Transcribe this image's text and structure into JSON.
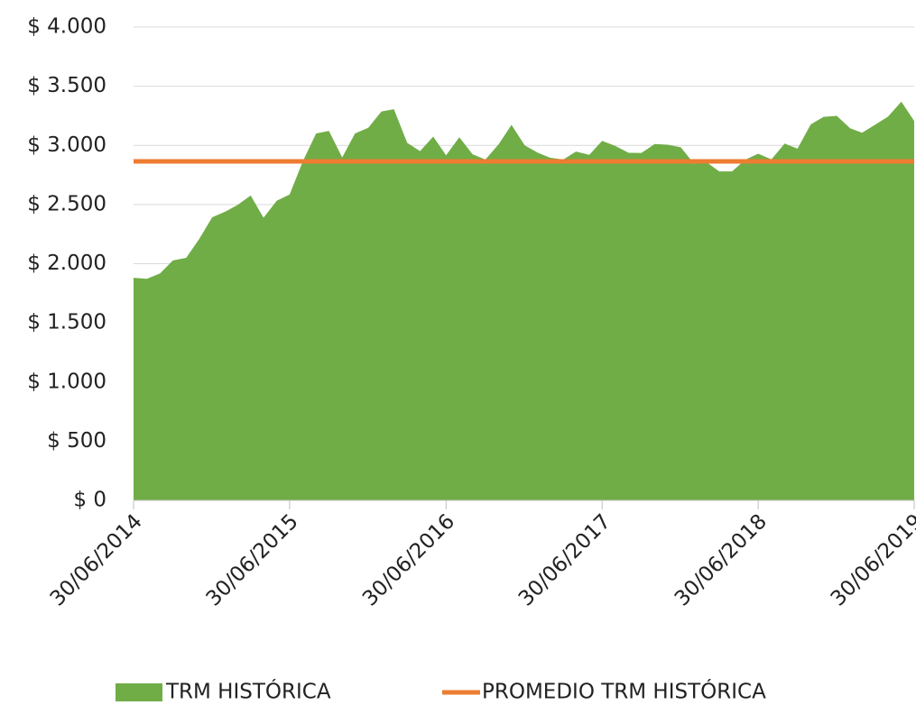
{
  "chart_data": {
    "type": "area",
    "x": [
      "30/06/2014",
      "31/07/2014",
      "31/08/2014",
      "30/09/2014",
      "31/10/2014",
      "30/11/2014",
      "31/12/2014",
      "31/01/2015",
      "28/02/2015",
      "31/03/2015",
      "30/04/2015",
      "31/05/2015",
      "30/06/2015",
      "31/07/2015",
      "31/08/2015",
      "30/09/2015",
      "31/10/2015",
      "30/11/2015",
      "31/12/2015",
      "31/01/2016",
      "29/02/2016",
      "31/03/2016",
      "30/04/2016",
      "31/05/2016",
      "30/06/2016",
      "31/07/2016",
      "31/08/2016",
      "30/09/2016",
      "31/10/2016",
      "30/11/2016",
      "31/12/2016",
      "31/01/2017",
      "28/02/2017",
      "31/03/2017",
      "30/04/2017",
      "31/05/2017",
      "30/06/2017",
      "31/07/2017",
      "31/08/2017",
      "30/09/2017",
      "31/10/2017",
      "30/11/2017",
      "31/12/2017",
      "31/01/2018",
      "28/02/2018",
      "31/03/2018",
      "30/04/2018",
      "31/05/2018",
      "30/06/2018",
      "31/07/2018",
      "31/08/2018",
      "30/09/2018",
      "31/10/2018",
      "30/11/2018",
      "31/12/2018",
      "31/01/2019",
      "28/02/2019",
      "31/03/2019",
      "30/04/2019",
      "31/05/2019",
      "30/06/2019"
    ],
    "series": [
      {
        "name": "TRM HISTÓRICA",
        "color": "#70ad47",
        "values": [
          1881,
          1872,
          1918,
          2028,
          2050,
          2206,
          2392,
          2441,
          2496,
          2576,
          2389,
          2532,
          2585,
          2866,
          3101,
          3122,
          2898,
          3101,
          3149,
          3287,
          3306,
          3022,
          2951,
          3074,
          2916,
          3069,
          2925,
          2880,
          3010,
          3173,
          3000,
          2937,
          2896,
          2880,
          2948,
          2920,
          3038,
          2995,
          2937,
          2936,
          3011,
          3006,
          2984,
          2844,
          2861,
          2780,
          2780,
          2879,
          2930,
          2882,
          3015,
          2972,
          3177,
          3241,
          3250,
          3145,
          3107,
          3175,
          3244,
          3370,
          3206
        ]
      },
      {
        "name": "PROMEDIO TRM HISTÓRICA",
        "color": "#ed7d31",
        "type": "hline",
        "value": 2865
      }
    ],
    "xlim": [
      "30/06/2014",
      "30/06/2019"
    ],
    "xticks": [
      "30/06/2014",
      "30/06/2015",
      "30/06/2016",
      "30/06/2017",
      "30/06/2018",
      "30/06/2019"
    ],
    "ylim": [
      0,
      4000
    ],
    "yticks": [
      {
        "value": 0,
        "label": "$ 0"
      },
      {
        "value": 500,
        "label": "$ 500"
      },
      {
        "value": 1000,
        "label": "$ 1.000"
      },
      {
        "value": 1500,
        "label": "$ 1.500"
      },
      {
        "value": 2000,
        "label": "$ 2.000"
      },
      {
        "value": 2500,
        "label": "$ 2.500"
      },
      {
        "value": 3000,
        "label": "$ 3.000"
      },
      {
        "value": 3500,
        "label": "$ 3.500"
      },
      {
        "value": 4000,
        "label": "$ 4.000"
      }
    ],
    "grid": true,
    "legend": "bottom"
  }
}
